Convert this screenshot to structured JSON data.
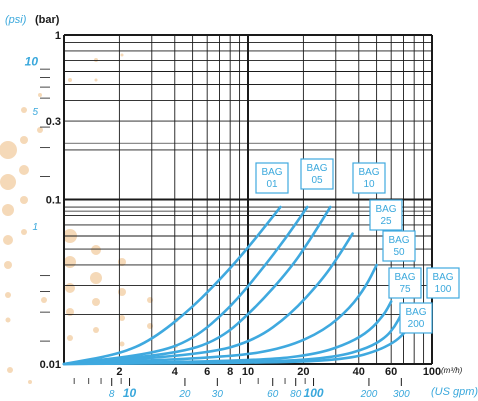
{
  "chart_data": {
    "type": "line",
    "title": "",
    "xscale": "log",
    "yscale": "log",
    "xlabel": "(m³/h)",
    "ylabel": "(bar)",
    "y_secondary_label": "(psi)",
    "x_secondary_label": "(US gpm)",
    "xlim": [
      1,
      100
    ],
    "ylim": [
      0.01,
      1
    ],
    "grid": true,
    "x_ticks": [
      {
        "value": 2,
        "label": "2"
      },
      {
        "value": 4,
        "label": "4"
      },
      {
        "value": 6,
        "label": "6"
      },
      {
        "value": 8,
        "label": "8"
      },
      {
        "value": 10,
        "label": "10"
      },
      {
        "value": 20,
        "label": "20"
      },
      {
        "value": 40,
        "label": "40"
      },
      {
        "value": 60,
        "label": "60"
      },
      {
        "value": 100,
        "label": "100"
      }
    ],
    "y_ticks": [
      {
        "value": 1,
        "label": "1"
      },
      {
        "value": 0.3,
        "label": "0.3"
      },
      {
        "value": 0.1,
        "label": "0.1"
      },
      {
        "value": 0.01,
        "label": "0.01"
      }
    ],
    "x_secondary_ticks": [
      {
        "value": 8,
        "label": "8"
      },
      {
        "value": 10,
        "label": "10"
      },
      {
        "value": 20,
        "label": "20"
      },
      {
        "value": 30,
        "label": "30"
      },
      {
        "value": 60,
        "label": "60"
      },
      {
        "value": 80,
        "label": "80"
      },
      {
        "value": 100,
        "label": "100"
      },
      {
        "value": 200,
        "label": "200"
      },
      {
        "value": 300,
        "label": "300"
      }
    ],
    "y_secondary_ticks": [
      {
        "value": 10,
        "label": "10"
      },
      {
        "value": 5,
        "label": "5"
      },
      {
        "value": 1,
        "label": "1"
      }
    ],
    "series": [
      {
        "name": "BAG 01",
        "label_lines": [
          "BAG",
          "01"
        ],
        "x": [
          1,
          2,
          3,
          5,
          8,
          11,
          15
        ],
        "y": [
          0.01,
          0.0115,
          0.014,
          0.022,
          0.038,
          0.058,
          0.09
        ]
      },
      {
        "name": "BAG 05",
        "label_lines": [
          "BAG",
          "05"
        ],
        "x": [
          1,
          3,
          5,
          8,
          12,
          16,
          21
        ],
        "y": [
          0.01,
          0.0115,
          0.014,
          0.022,
          0.038,
          0.058,
          0.09
        ]
      },
      {
        "name": "BAG 10",
        "label_lines": [
          "BAG",
          "10"
        ],
        "x": [
          1,
          4,
          7,
          11,
          17,
          22,
          28
        ],
        "y": [
          0.01,
          0.0115,
          0.014,
          0.022,
          0.038,
          0.058,
          0.09
        ]
      },
      {
        "name": "BAG 25",
        "label_lines": [
          "BAG",
          "25"
        ],
        "x": [
          1,
          6,
          11,
          17,
          25,
          31,
          37
        ],
        "y": [
          0.01,
          0.0115,
          0.014,
          0.02,
          0.032,
          0.045,
          0.062
        ]
      },
      {
        "name": "BAG 50",
        "label_lines": [
          "BAG",
          "50"
        ],
        "x": [
          1,
          8,
          16,
          26,
          36,
          44,
          50
        ],
        "y": [
          0.01,
          0.011,
          0.0125,
          0.016,
          0.022,
          0.03,
          0.04
        ]
      },
      {
        "name": "BAG 75",
        "label_lines": [
          "BAG",
          "75"
        ],
        "x": [
          1,
          12,
          24,
          36,
          46,
          55,
          60
        ],
        "y": [
          0.01,
          0.0105,
          0.0115,
          0.0135,
          0.016,
          0.02,
          0.024
        ]
      },
      {
        "name": "BAG 100",
        "label_lines": [
          "BAG",
          "100"
        ],
        "x": [
          1,
          14,
          30,
          45,
          56,
          63,
          68
        ],
        "y": [
          0.01,
          0.0103,
          0.011,
          0.0125,
          0.0145,
          0.017,
          0.02
        ]
      },
      {
        "name": "BAG 200",
        "label_lines": [
          "BAG",
          "200"
        ],
        "x": [
          1,
          17,
          36,
          50,
          62,
          70,
          75
        ],
        "y": [
          0.01,
          0.0102,
          0.0108,
          0.012,
          0.0135,
          0.0152,
          0.017
        ]
      }
    ],
    "colors": {
      "curve": "#3fa9df",
      "grid": "#1a1a1a",
      "dots": "#f5d9b8",
      "blue_text": "#3aa8dc"
    }
  }
}
